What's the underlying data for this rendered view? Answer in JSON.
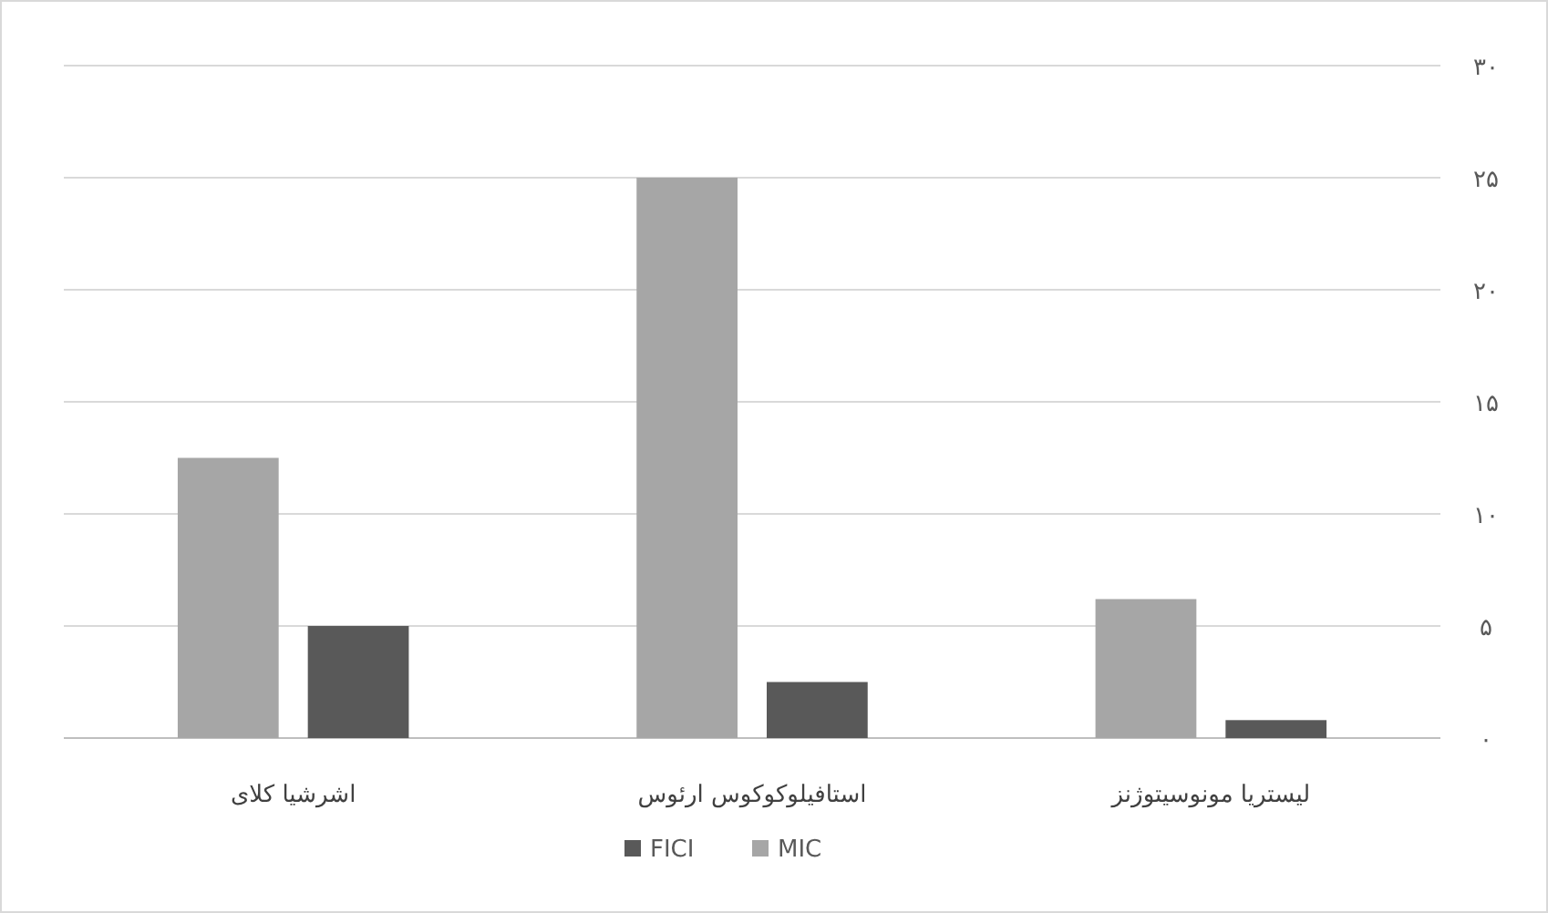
{
  "chart_data": {
    "type": "bar",
    "categories": [
      "اشرشیا کلای",
      "استافیلوکوکوس ارئوس",
      "لیستریا مونوسیتوژنز"
    ],
    "series": [
      {
        "name": "MIC",
        "color": "#a6a6a6",
        "values": [
          12.5,
          25,
          6.2
        ]
      },
      {
        "name": "FICI",
        "color": "#595959",
        "values": [
          5,
          2.5,
          0.8
        ]
      }
    ],
    "ylim": [
      0,
      30
    ],
    "yticks": [
      {
        "value": 0,
        "label": "۰"
      },
      {
        "value": 5,
        "label": "۵"
      },
      {
        "value": 10,
        "label": "۱۰"
      },
      {
        "value": 15,
        "label": "۱۵"
      },
      {
        "value": 20,
        "label": "۲۰"
      },
      {
        "value": 25,
        "label": "۲۵"
      },
      {
        "value": 30,
        "label": "۳۰"
      }
    ],
    "grid": "y",
    "legend": "bottom"
  }
}
